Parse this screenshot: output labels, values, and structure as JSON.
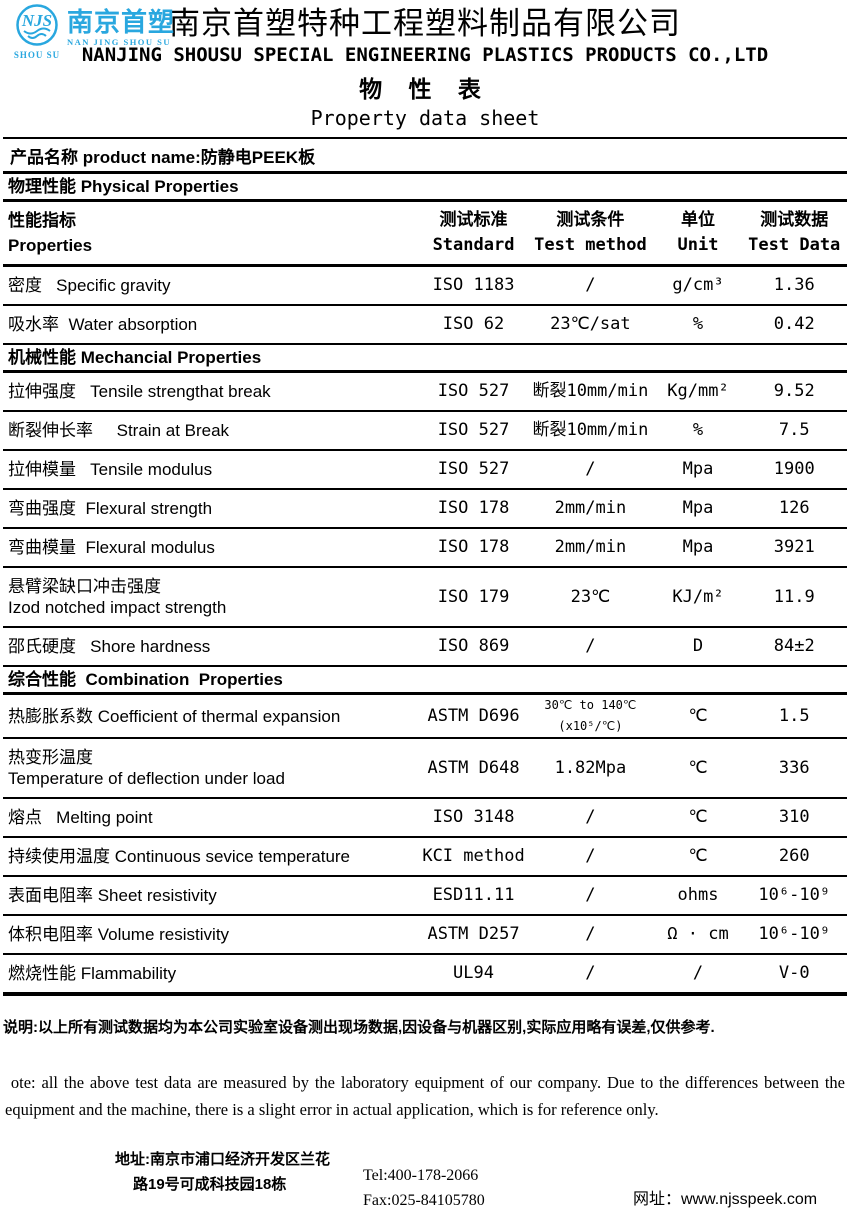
{
  "colors": {
    "logo_blue": "#29a7df",
    "text": "#000000",
    "background": "#ffffff"
  },
  "header": {
    "logo": {
      "monogram": "NJS",
      "shou_su": "SHOU SU",
      "name_cn": "南京首塑",
      "name_en": "NAN JING SHOU SU"
    },
    "company_cn": "南京首塑特种工程塑料制品有限公司",
    "company_en": "NANJING SHOUSU SPECIAL ENGINEERING PLASTICS PRODUCTS CO.,LTD",
    "sheet_title_cn": "物 性 表",
    "sheet_title_en": "Property data sheet"
  },
  "product": {
    "label": "产品名称 product name:防静电PEEK板"
  },
  "table": {
    "columns": [
      "性能指标\nProperties",
      "测试标准\nStandard",
      "测试条件\nTest method",
      "单位\nUnit",
      "测试数据\nTest Data"
    ],
    "body": [
      {
        "kind": "section",
        "title": "物理性能 Physical Properties"
      },
      {
        "kind": "header"
      },
      {
        "kind": "row",
        "property": "密度   Specific gravity",
        "standard": "ISO 1183",
        "method": "/",
        "unit": "g/cm³",
        "data": "1.36"
      },
      {
        "kind": "row",
        "property": "吸水率  Water absorption",
        "standard": "ISO 62",
        "method": "23℃/sat",
        "unit": "%",
        "data": "0.42"
      },
      {
        "kind": "section",
        "title": "机械性能 Mechancial Properties"
      },
      {
        "kind": "row",
        "property": "拉伸强度   Tensile strengthat break",
        "standard": "ISO 527",
        "method": "断裂10mm/min",
        "unit": "Kg/mm²",
        "data": "9.52"
      },
      {
        "kind": "row",
        "property": "断裂伸长率     Strain at Break",
        "standard": "ISO 527",
        "method": "断裂10mm/min",
        "unit": "%",
        "data": "7.5"
      },
      {
        "kind": "row",
        "property": "拉伸模量   Tensile modulus",
        "standard": "ISO 527",
        "method": "/",
        "unit": "Mpa",
        "data": "1900"
      },
      {
        "kind": "row",
        "property": "弯曲强度  Flexural strength",
        "standard": "ISO 178",
        "method": "2mm/min",
        "unit": "Mpa",
        "data": "126"
      },
      {
        "kind": "row",
        "property": "弯曲模量  Flexural modulus",
        "standard": "ISO 178",
        "method": "2mm/min",
        "unit": "Mpa",
        "data": "3921"
      },
      {
        "kind": "row",
        "property": "悬臂梁缺口冲击强度\nIzod notched impact strength",
        "standard": "ISO 179",
        "method": "23℃",
        "unit": "KJ/m²",
        "data": "11.9"
      },
      {
        "kind": "row",
        "property": "邵氏硬度   Shore hardness",
        "standard": "ISO 869",
        "method": "/",
        "unit": "D",
        "data": "84±2"
      },
      {
        "kind": "section",
        "title": "综合性能  Combination  Properties"
      },
      {
        "kind": "row",
        "property": "热膨胀系数 Coefficient of thermal expansion",
        "standard": "ASTM D696",
        "method": "30℃ to 140℃(x10⁵/℃)",
        "method_small": true,
        "unit": "℃",
        "data": "1.5"
      },
      {
        "kind": "row",
        "property": "热变形温度\nTemperature of deflection under load",
        "standard": "ASTM D648",
        "method": "1.82Mpa",
        "unit": "℃",
        "data": "336"
      },
      {
        "kind": "row",
        "property": "熔点   Melting point",
        "standard": "ISO 3148",
        "method": "/",
        "unit": "℃",
        "data": "310"
      },
      {
        "kind": "row",
        "property": "持续使用温度 Continuous sevice temperature",
        "standard": "KCI method",
        "method": "/",
        "unit": "℃",
        "data": "260"
      },
      {
        "kind": "row",
        "property": "表面电阻率 Sheet resistivity",
        "standard": "ESD11.11",
        "method": "/",
        "unit": "ohms",
        "data": "10⁶-10⁹"
      },
      {
        "kind": "row",
        "property": "体积电阻率 Volume resistivity",
        "standard": "ASTM D257",
        "method": "/",
        "unit": "Ω · cm",
        "data": "10⁶-10⁹"
      },
      {
        "kind": "row",
        "property": "燃烧性能 Flammability",
        "standard": "UL94",
        "method": "/",
        "unit": "/",
        "data": "V-0",
        "last": true
      }
    ]
  },
  "notes": {
    "note_cn": "说明:以上所有测试数据均为本公司实验室设备测出现场数据,因设备与机器区别,实际应用略有误差,仅供参考.",
    "note_en": " ote: all the above test data are measured by the laboratory equipment of our company. Due to the differences between the equipment and the machine, there is a slight error in actual application, which is for reference only."
  },
  "footer": {
    "address_line1": "地址:南京市浦口经济开发区兰花",
    "address_line2": "路19号可成科技园18栋",
    "tel": "Tel:400-178-2066",
    "fax": "Fax:025-84105780",
    "website": "网址：www.njsspeek.com"
  }
}
